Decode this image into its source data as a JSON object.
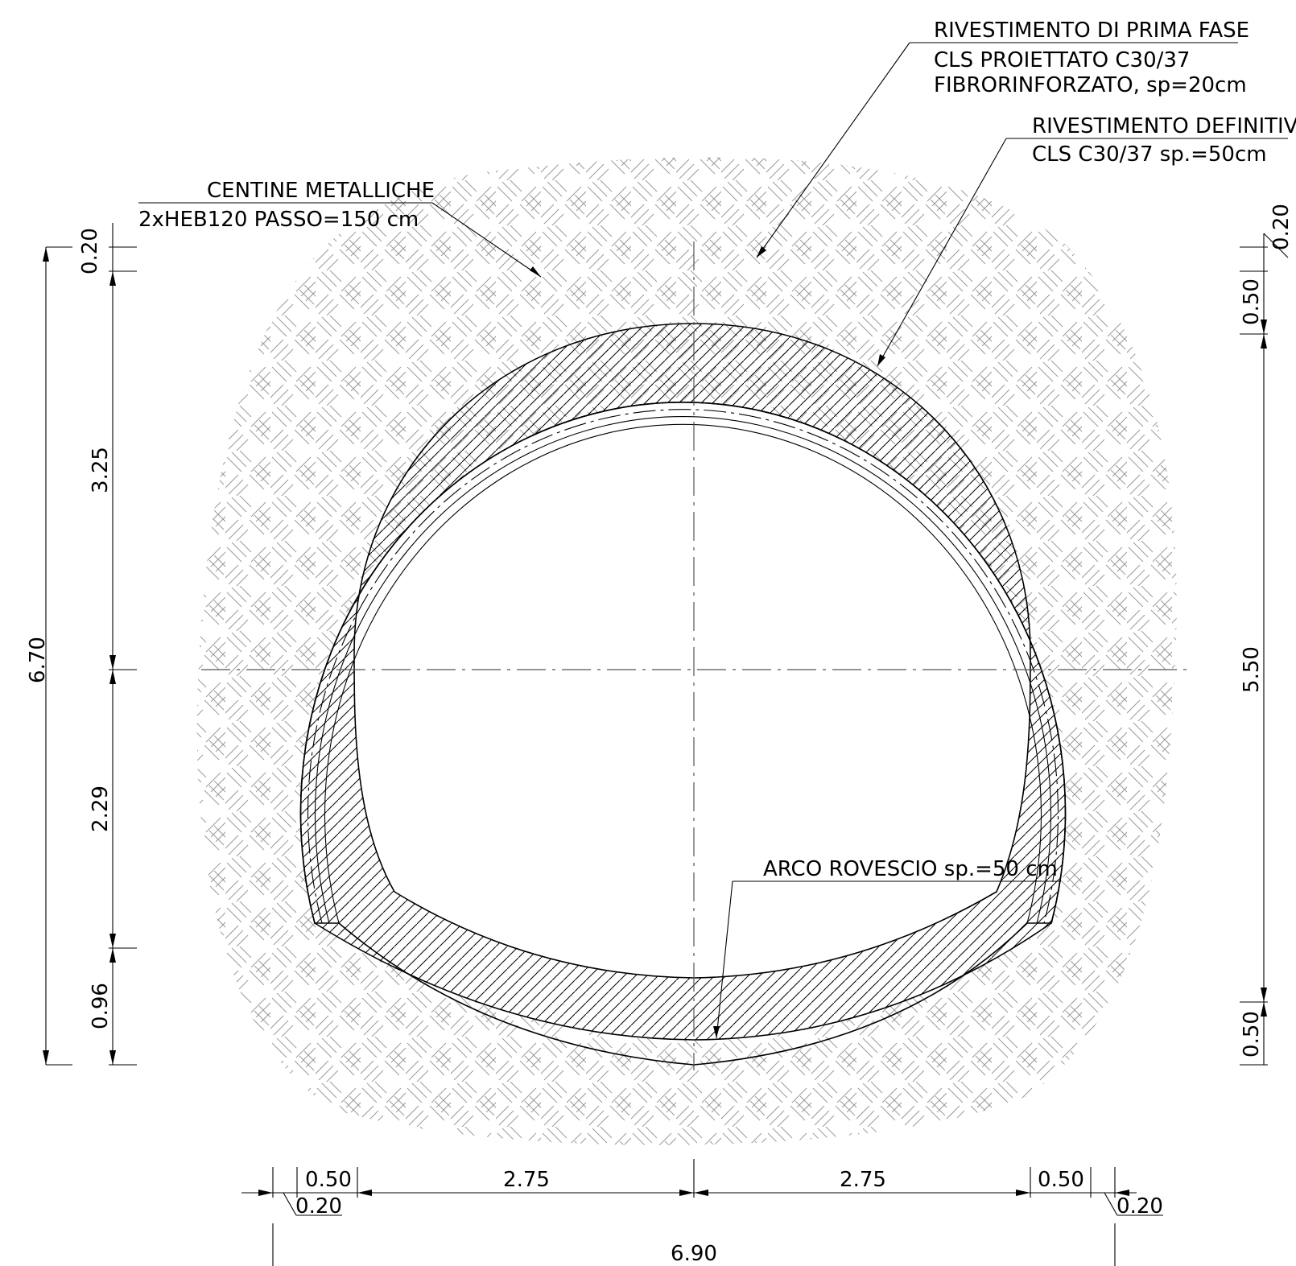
{
  "labels": {
    "primary_lining_title": "RIVESTIMENTO DI PRIMA FASE",
    "primary_lining_line2": "CLS PROIETTATO C30/37",
    "primary_lining_line3": "FIBRORINFORZATO, sp=20cm",
    "final_lining_title": "RIVESTIMENTO DEFINITIVO",
    "final_lining_line2": "CLS C30/37 sp.=50cm",
    "ribs_title": "CENTINE METALLICHE",
    "ribs_line2": "2xHEB120 PASSO=150 cm",
    "invert": "ARCO ROVESCIO sp.=50 cm"
  },
  "dimensions": {
    "left_total": "6.70",
    "left_top": "0.20",
    "left_upper": "3.25",
    "left_lower": "2.29",
    "left_bottom": "0.96",
    "right_total": "5.50",
    "right_top": "0.20",
    "right_lining_top": "0.50",
    "right_lining_bottom": "0.50",
    "bottom_left_lining": "0.50",
    "bottom_left_primary": "0.20",
    "bottom_left_half": "2.75",
    "bottom_right_half": "2.75",
    "bottom_right_lining": "0.50",
    "bottom_right_primary": "0.20",
    "overall_width": "6.90"
  }
}
